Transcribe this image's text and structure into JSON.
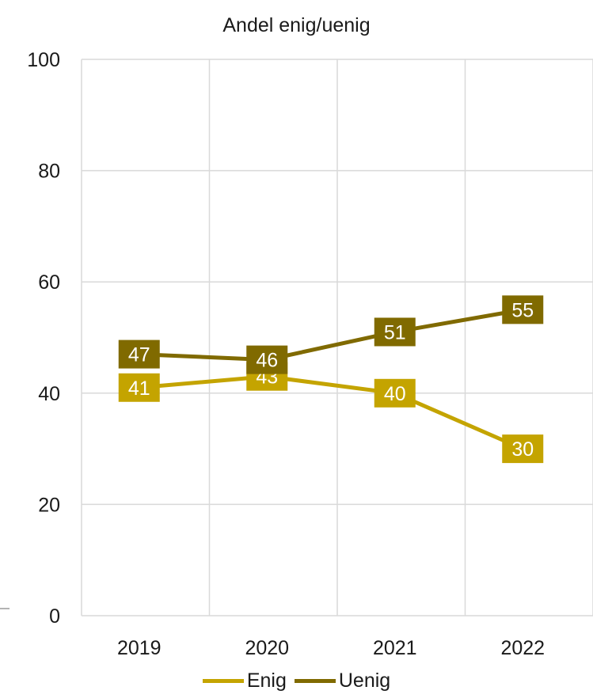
{
  "chart_data": {
    "type": "line",
    "title": "Andel enig/uenig",
    "categories": [
      "2019",
      "2020",
      "2021",
      "2022"
    ],
    "series": [
      {
        "name": "Enig",
        "values": [
          41,
          43,
          40,
          30
        ],
        "color": "#c4a400"
      },
      {
        "name": "Uenig",
        "values": [
          47,
          46,
          51,
          55
        ],
        "color": "#806a00"
      }
    ],
    "ylim": [
      0,
      100
    ],
    "yticks": [
      "0",
      "20",
      "40",
      "60",
      "80",
      "100"
    ],
    "grid": true,
    "legend": "bottom"
  }
}
